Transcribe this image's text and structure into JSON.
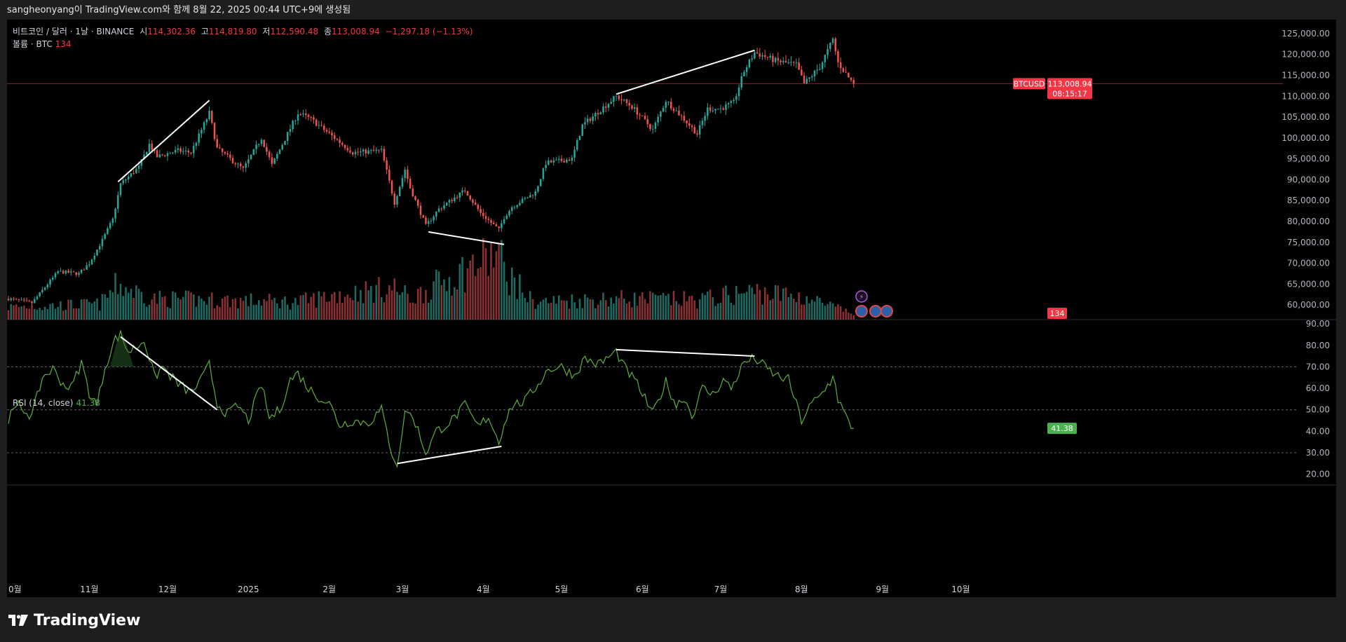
{
  "watermark_line": "sangheonyang이 TradingView.com와 함께 8월 22, 2025 00:44 UTC+9에 생성됨",
  "symbol": {
    "name": "비트코인 / 달러 · 1날 · BINANCE",
    "open_label": "시",
    "open": "114,302.36",
    "high_label": "고",
    "high": "114,819.80",
    "low_label": "저",
    "low": "112,590.48",
    "close_label": "종",
    "close": "113,008.94",
    "change": "−1,297.18 (−1.13%)"
  },
  "volume_legend": {
    "name": "볼륨 · BTC",
    "value": "134"
  },
  "rsi_legend": {
    "name": "RSI (14, close)",
    "value": "41.38"
  },
  "price_tag": {
    "ticker": "BTCUSD",
    "price": "113,008.94",
    "countdown": "08:15:17"
  },
  "volume_tag": "134",
  "rsi_tag": "41.38",
  "brand": "TradingView",
  "colors": {
    "up": "#26a69a",
    "down": "#ef5350",
    "vol_up": "#1e6b64",
    "vol_down": "#8b3133",
    "rsi_line": "#5fae3b",
    "trendline": "#ffffff",
    "price_line": "#f23645"
  },
  "chart_data": {
    "type": "candlestick",
    "price_axis_ticks": [
      "125,000.00",
      "120,000.00",
      "115,000.00",
      "110,000.00",
      "105,000.00",
      "100,000.00",
      "95,000.00",
      "90,000.00",
      "85,000.00",
      "80,000.00",
      "75,000.00",
      "70,000.00",
      "65,000.00",
      "60,000.00"
    ],
    "rsi_axis_ticks": [
      "90.00",
      "80.00",
      "70.00",
      "60.00",
      "50.00",
      "40.00",
      "30.00",
      "20.00"
    ],
    "x_tick_labels": [
      "0월",
      "11월",
      "12월",
      "2025",
      "2월",
      "3월",
      "4월",
      "5월",
      "6월",
      "7월",
      "8월",
      "9월",
      "10월"
    ],
    "rsi_levels": [
      70,
      50,
      30
    ],
    "x_range": [
      "2024-10-01",
      "2025-10-31"
    ],
    "price_range": [
      56500,
      127000
    ],
    "rsi_range": [
      15,
      92
    ],
    "price_anchors": [
      [
        "2024-10-01",
        61500
      ],
      [
        "2024-10-10",
        60500
      ],
      [
        "2024-10-20",
        68000
      ],
      [
        "2024-10-28",
        67500
      ],
      [
        "2024-11-01",
        70000
      ],
      [
        "2024-11-06",
        75500
      ],
      [
        "2024-11-10",
        80500
      ],
      [
        "2024-11-13",
        89000
      ],
      [
        "2024-11-20",
        93000
      ],
      [
        "2024-11-24",
        98500
      ],
      [
        "2024-11-27",
        95500
      ],
      [
        "2024-12-05",
        97000
      ],
      [
        "2024-12-10",
        96500
      ],
      [
        "2024-12-17",
        106000
      ],
      [
        "2024-12-20",
        97500
      ],
      [
        "2024-12-25",
        95000
      ],
      [
        "2024-12-30",
        92500
      ],
      [
        "2025-01-06",
        100000
      ],
      [
        "2025-01-10",
        93500
      ],
      [
        "2025-01-20",
        106000
      ],
      [
        "2025-01-25",
        104500
      ],
      [
        "2025-02-01",
        101000
      ],
      [
        "2025-02-10",
        96500
      ],
      [
        "2025-02-21",
        97000
      ],
      [
        "2025-02-26",
        84500
      ],
      [
        "2025-03-02",
        92500
      ],
      [
        "2025-03-04",
        88000
      ],
      [
        "2025-03-10",
        79000
      ],
      [
        "2025-03-15",
        83000
      ],
      [
        "2025-03-25",
        87500
      ],
      [
        "2025-03-31",
        82000
      ],
      [
        "2025-04-07",
        78000
      ],
      [
        "2025-04-09",
        81000
      ],
      [
        "2025-04-12",
        83500
      ],
      [
        "2025-04-21",
        87000
      ],
      [
        "2025-04-25",
        94000
      ],
      [
        "2025-05-05",
        95000
      ],
      [
        "2025-05-09",
        103000
      ],
      [
        "2025-05-22",
        110000
      ],
      [
        "2025-05-28",
        107500
      ],
      [
        "2025-06-05",
        102000
      ],
      [
        "2025-06-10",
        109000
      ],
      [
        "2025-06-17",
        104500
      ],
      [
        "2025-06-22",
        101000
      ],
      [
        "2025-06-26",
        107000
      ],
      [
        "2025-07-01",
        107000
      ],
      [
        "2025-07-06",
        108500
      ],
      [
        "2025-07-10",
        116000
      ],
      [
        "2025-07-14",
        120500
      ],
      [
        "2025-07-22",
        118500
      ],
      [
        "2025-07-30",
        117500
      ],
      [
        "2025-08-02",
        113000
      ],
      [
        "2025-08-08",
        117000
      ],
      [
        "2025-08-13",
        123500
      ],
      [
        "2025-08-15",
        118000
      ],
      [
        "2025-08-19",
        114500
      ],
      [
        "2025-08-21",
        113009
      ]
    ],
    "rsi_anchors": [
      [
        "2024-10-01",
        46
      ],
      [
        "2024-10-05",
        52
      ],
      [
        "2024-10-10",
        47
      ],
      [
        "2024-10-14",
        65
      ],
      [
        "2024-10-18",
        69
      ],
      [
        "2024-10-22",
        62
      ],
      [
        "2024-10-25",
        60
      ],
      [
        "2024-10-29",
        72
      ],
      [
        "2024-11-01",
        58
      ],
      [
        "2024-11-04",
        52
      ],
      [
        "2024-11-07",
        70
      ],
      [
        "2024-11-11",
        83
      ],
      [
        "2024-11-13",
        85
      ],
      [
        "2024-11-16",
        77
      ],
      [
        "2024-11-20",
        80
      ],
      [
        "2024-11-22",
        83
      ],
      [
        "2024-11-26",
        65
      ],
      [
        "2024-11-29",
        70
      ],
      [
        "2024-12-05",
        62
      ],
      [
        "2024-12-10",
        58
      ],
      [
        "2024-12-14",
        64
      ],
      [
        "2024-12-17",
        71
      ],
      [
        "2024-12-20",
        53
      ],
      [
        "2024-12-24",
        48
      ],
      [
        "2024-12-28",
        52
      ],
      [
        "2025-01-01",
        45
      ],
      [
        "2025-01-06",
        62
      ],
      [
        "2025-01-09",
        46
      ],
      [
        "2025-01-13",
        50
      ],
      [
        "2025-01-17",
        64
      ],
      [
        "2025-01-20",
        67
      ],
      [
        "2025-01-24",
        60
      ],
      [
        "2025-01-28",
        56
      ],
      [
        "2025-02-01",
        53
      ],
      [
        "2025-02-05",
        43
      ],
      [
        "2025-02-10",
        45
      ],
      [
        "2025-02-16",
        44
      ],
      [
        "2025-02-21",
        50
      ],
      [
        "2025-02-25",
        30
      ],
      [
        "2025-02-27",
        25
      ],
      [
        "2025-03-01",
        38
      ],
      [
        "2025-03-02",
        51
      ],
      [
        "2025-03-06",
        44
      ],
      [
        "2025-03-10",
        30
      ],
      [
        "2025-03-14",
        40
      ],
      [
        "2025-03-20",
        45
      ],
      [
        "2025-03-25",
        52
      ],
      [
        "2025-03-30",
        42
      ],
      [
        "2025-04-03",
        47
      ],
      [
        "2025-04-07",
        35
      ],
      [
        "2025-04-09",
        44
      ],
      [
        "2025-04-12",
        52
      ],
      [
        "2025-04-17",
        54
      ],
      [
        "2025-04-22",
        62
      ],
      [
        "2025-04-26",
        69
      ],
      [
        "2025-05-01",
        70
      ],
      [
        "2025-05-06",
        66
      ],
      [
        "2025-05-10",
        74
      ],
      [
        "2025-05-15",
        71
      ],
      [
        "2025-05-22",
        77
      ],
      [
        "2025-05-25",
        70
      ],
      [
        "2025-05-30",
        62
      ],
      [
        "2025-06-05",
        48
      ],
      [
        "2025-06-10",
        63
      ],
      [
        "2025-06-14",
        52
      ],
      [
        "2025-06-17",
        56
      ],
      [
        "2025-06-20",
        47
      ],
      [
        "2025-06-24",
        60
      ],
      [
        "2025-06-28",
        57
      ],
      [
        "2025-07-02",
        64
      ],
      [
        "2025-07-05",
        60
      ],
      [
        "2025-07-10",
        72
      ],
      [
        "2025-07-14",
        74
      ],
      [
        "2025-07-18",
        70
      ],
      [
        "2025-07-22",
        66
      ],
      [
        "2025-07-27",
        64
      ],
      [
        "2025-08-01",
        45
      ],
      [
        "2025-08-05",
        53
      ],
      [
        "2025-08-08",
        56
      ],
      [
        "2025-08-12",
        63
      ],
      [
        "2025-08-13",
        67
      ],
      [
        "2025-08-15",
        55
      ],
      [
        "2025-08-19",
        44
      ],
      [
        "2025-08-21",
        41.38
      ]
    ],
    "volume_anchors": [
      [
        "2024-10-01",
        18
      ],
      [
        "2024-11-05",
        22
      ],
      [
        "2024-11-12",
        50
      ],
      [
        "2024-11-25",
        30
      ],
      [
        "2024-12-18",
        28
      ],
      [
        "2025-01-20",
        25
      ],
      [
        "2025-02-03",
        35
      ],
      [
        "2025-02-26",
        45
      ],
      [
        "2025-03-04",
        30
      ],
      [
        "2025-04-07",
        95
      ],
      [
        "2025-04-09",
        70
      ],
      [
        "2025-04-20",
        25
      ],
      [
        "2025-05-22",
        30
      ],
      [
        "2025-06-22",
        28
      ],
      [
        "2025-07-14",
        40
      ],
      [
        "2025-08-02",
        32
      ],
      [
        "2025-08-21",
        8
      ]
    ],
    "trendlines_price": [
      [
        [
          "2024-11-12",
          89500
        ],
        [
          "2024-12-17",
          109000
        ]
      ],
      [
        [
          "2025-03-11",
          77500
        ],
        [
          "2025-04-09",
          74500
        ]
      ],
      [
        [
          "2025-05-22",
          110500
        ],
        [
          "2025-07-14",
          121000
        ]
      ]
    ],
    "trendlines_rsi": [
      [
        [
          "2024-11-13",
          84
        ],
        [
          "2024-12-20",
          50
        ]
      ],
      [
        [
          "2025-02-27",
          25
        ],
        [
          "2025-04-08",
          33
        ]
      ],
      [
        [
          "2025-05-22",
          78
        ],
        [
          "2025-07-14",
          75
        ]
      ]
    ],
    "current_price": 113008.94,
    "current_rsi": 41.38
  }
}
